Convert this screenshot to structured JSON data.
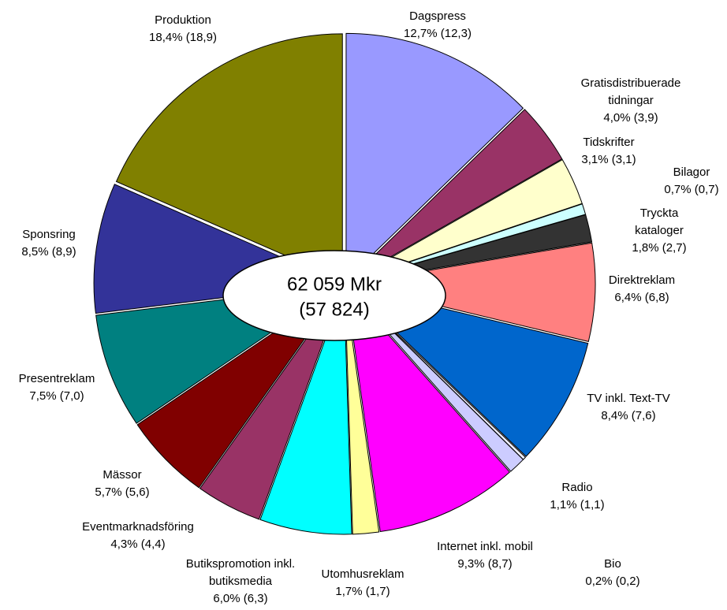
{
  "chart_data": {
    "type": "pie",
    "categories": [
      "Dagspress",
      "Gratisdistribuerade tidningar",
      "Tidskrifter",
      "Bilagor",
      "Tryckta kataloger",
      "Direktreklam",
      "TV inkl. Text-TV",
      "Bio",
      "Radio",
      "Internet inkl. mobil",
      "Utomhusreklam",
      "Butikspromotion inkl. butiksmedia",
      "Eventmarknadsföring",
      "Mässor",
      "Presentreklam",
      "Sponsring",
      "Produktion"
    ],
    "values": [
      12.7,
      4.0,
      3.1,
      0.7,
      1.8,
      6.4,
      8.4,
      0.2,
      1.1,
      9.3,
      1.7,
      6.0,
      4.3,
      5.7,
      7.5,
      8.5,
      18.4
    ],
    "value_labels": [
      "12,7% (12,3)",
      "4,0% (3,9)",
      "3,1% (3,1)",
      "0,7% (0,7)",
      "1,8% (2,7)",
      "6,4% (6,8)",
      "8,4% (7,6)",
      "0,2% (0,2)",
      "1,1% (1,1)",
      "9,3% (8,7)",
      "1,7% (1,7)",
      "6,0% (6,3)",
      "4,3% (4,4)",
      "5,7% (5,6)",
      "7,5% (7,0)",
      "8,5% (8,9)",
      "18,4% (18,9)"
    ],
    "colors": [
      "#9999ff",
      "#993366",
      "#ffffcc",
      "#ccffff",
      "#333333",
      "#ff8080",
      "#0066cc",
      "#eeeeff",
      "#ccccff",
      "#ff00ff",
      "#ffff99",
      "#00ffff",
      "#993366",
      "#800000",
      "#008080",
      "#333399",
      "#808000"
    ],
    "center_label": [
      "62 059 Mkr",
      "(57 824)"
    ]
  }
}
